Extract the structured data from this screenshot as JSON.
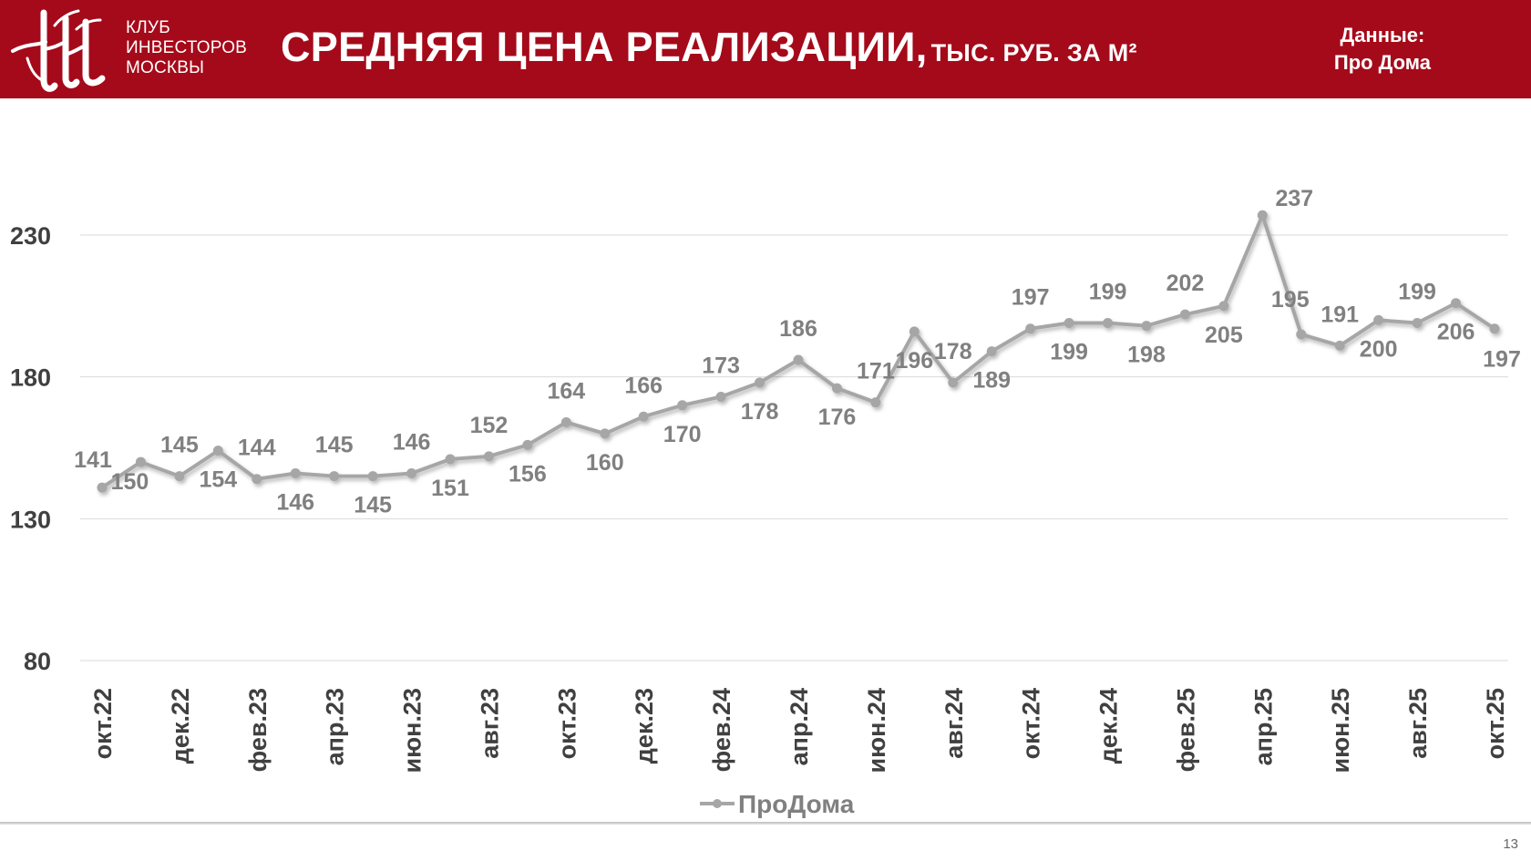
{
  "header": {
    "logo_lines": [
      "КЛУБ",
      "ИНВЕСТОРОВ",
      "МОСКВЫ"
    ],
    "title_main": "СРЕДНЯЯ ЦЕНА РЕАЛИЗАЦИИ,",
    "title_unit": "ТЫС. РУБ. ЗА М²",
    "source_label": "Данные:",
    "source_name": "Про Дома"
  },
  "colors": {
    "brand": "#a50a1a",
    "series": "#a6a6a6",
    "labels": "#808080",
    "axis_text": "#404040",
    "grid": "#d9d9d9"
  },
  "page_number": "13",
  "chart_data": {
    "type": "line",
    "title": "",
    "xlabel": "",
    "ylabel": "",
    "ylim": [
      80,
      230
    ],
    "yticks": [
      80,
      130,
      180,
      230
    ],
    "grid": true,
    "legend_position": "bottom",
    "x": [
      "окт.22",
      "ноя.22",
      "дек.22",
      "янв.23",
      "фев.23",
      "мар.23",
      "апр.23",
      "май.23",
      "июн.23",
      "июл.23",
      "авг.23",
      "сен.23",
      "окт.23",
      "ноя.23",
      "дек.23",
      "янв.24",
      "фев.24",
      "мар.24",
      "апр.24",
      "май.24",
      "июн.24",
      "июл.24",
      "авг.24",
      "сен.24",
      "окт.24",
      "ноя.24",
      "дек.24",
      "янв.25",
      "фев.25",
      "мар.25",
      "апр.25",
      "май.25",
      "июн.25",
      "июл.25",
      "авг.25",
      "сен.25",
      "окт.25"
    ],
    "x_tick_labels": [
      "окт.22",
      "дек.22",
      "фев.23",
      "апр.23",
      "июн.23",
      "авг.23",
      "окт.23",
      "дек.23",
      "фев.24",
      "апр.24",
      "июн.24",
      "авг.24",
      "окт.24",
      "дек.24",
      "фев.25",
      "апр.25",
      "июн.25",
      "авг.25",
      "окт.25"
    ],
    "series": [
      {
        "name": "ПроДома",
        "values": [
          141,
          150,
          145,
          154,
          144,
          146,
          145,
          145,
          146,
          151,
          152,
          156,
          164,
          160,
          166,
          170,
          173,
          178,
          186,
          176,
          171,
          196,
          178,
          189,
          197,
          199,
          199,
          198,
          202,
          205,
          237,
          195,
          191,
          200,
          199,
          206,
          197
        ]
      }
    ]
  }
}
